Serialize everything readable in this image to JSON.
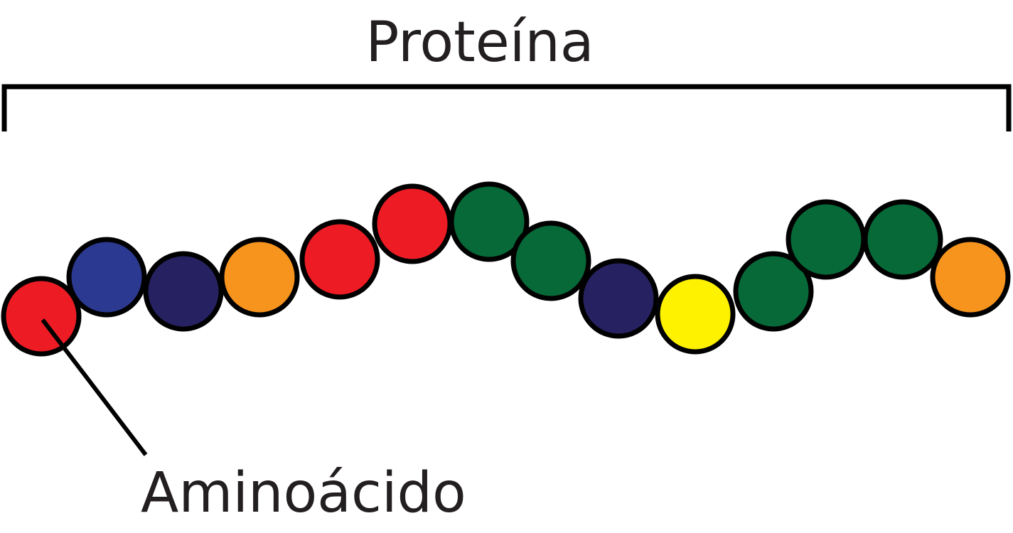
{
  "diagram": {
    "title": "Proteína",
    "callout": "Aminoácido"
  }
}
